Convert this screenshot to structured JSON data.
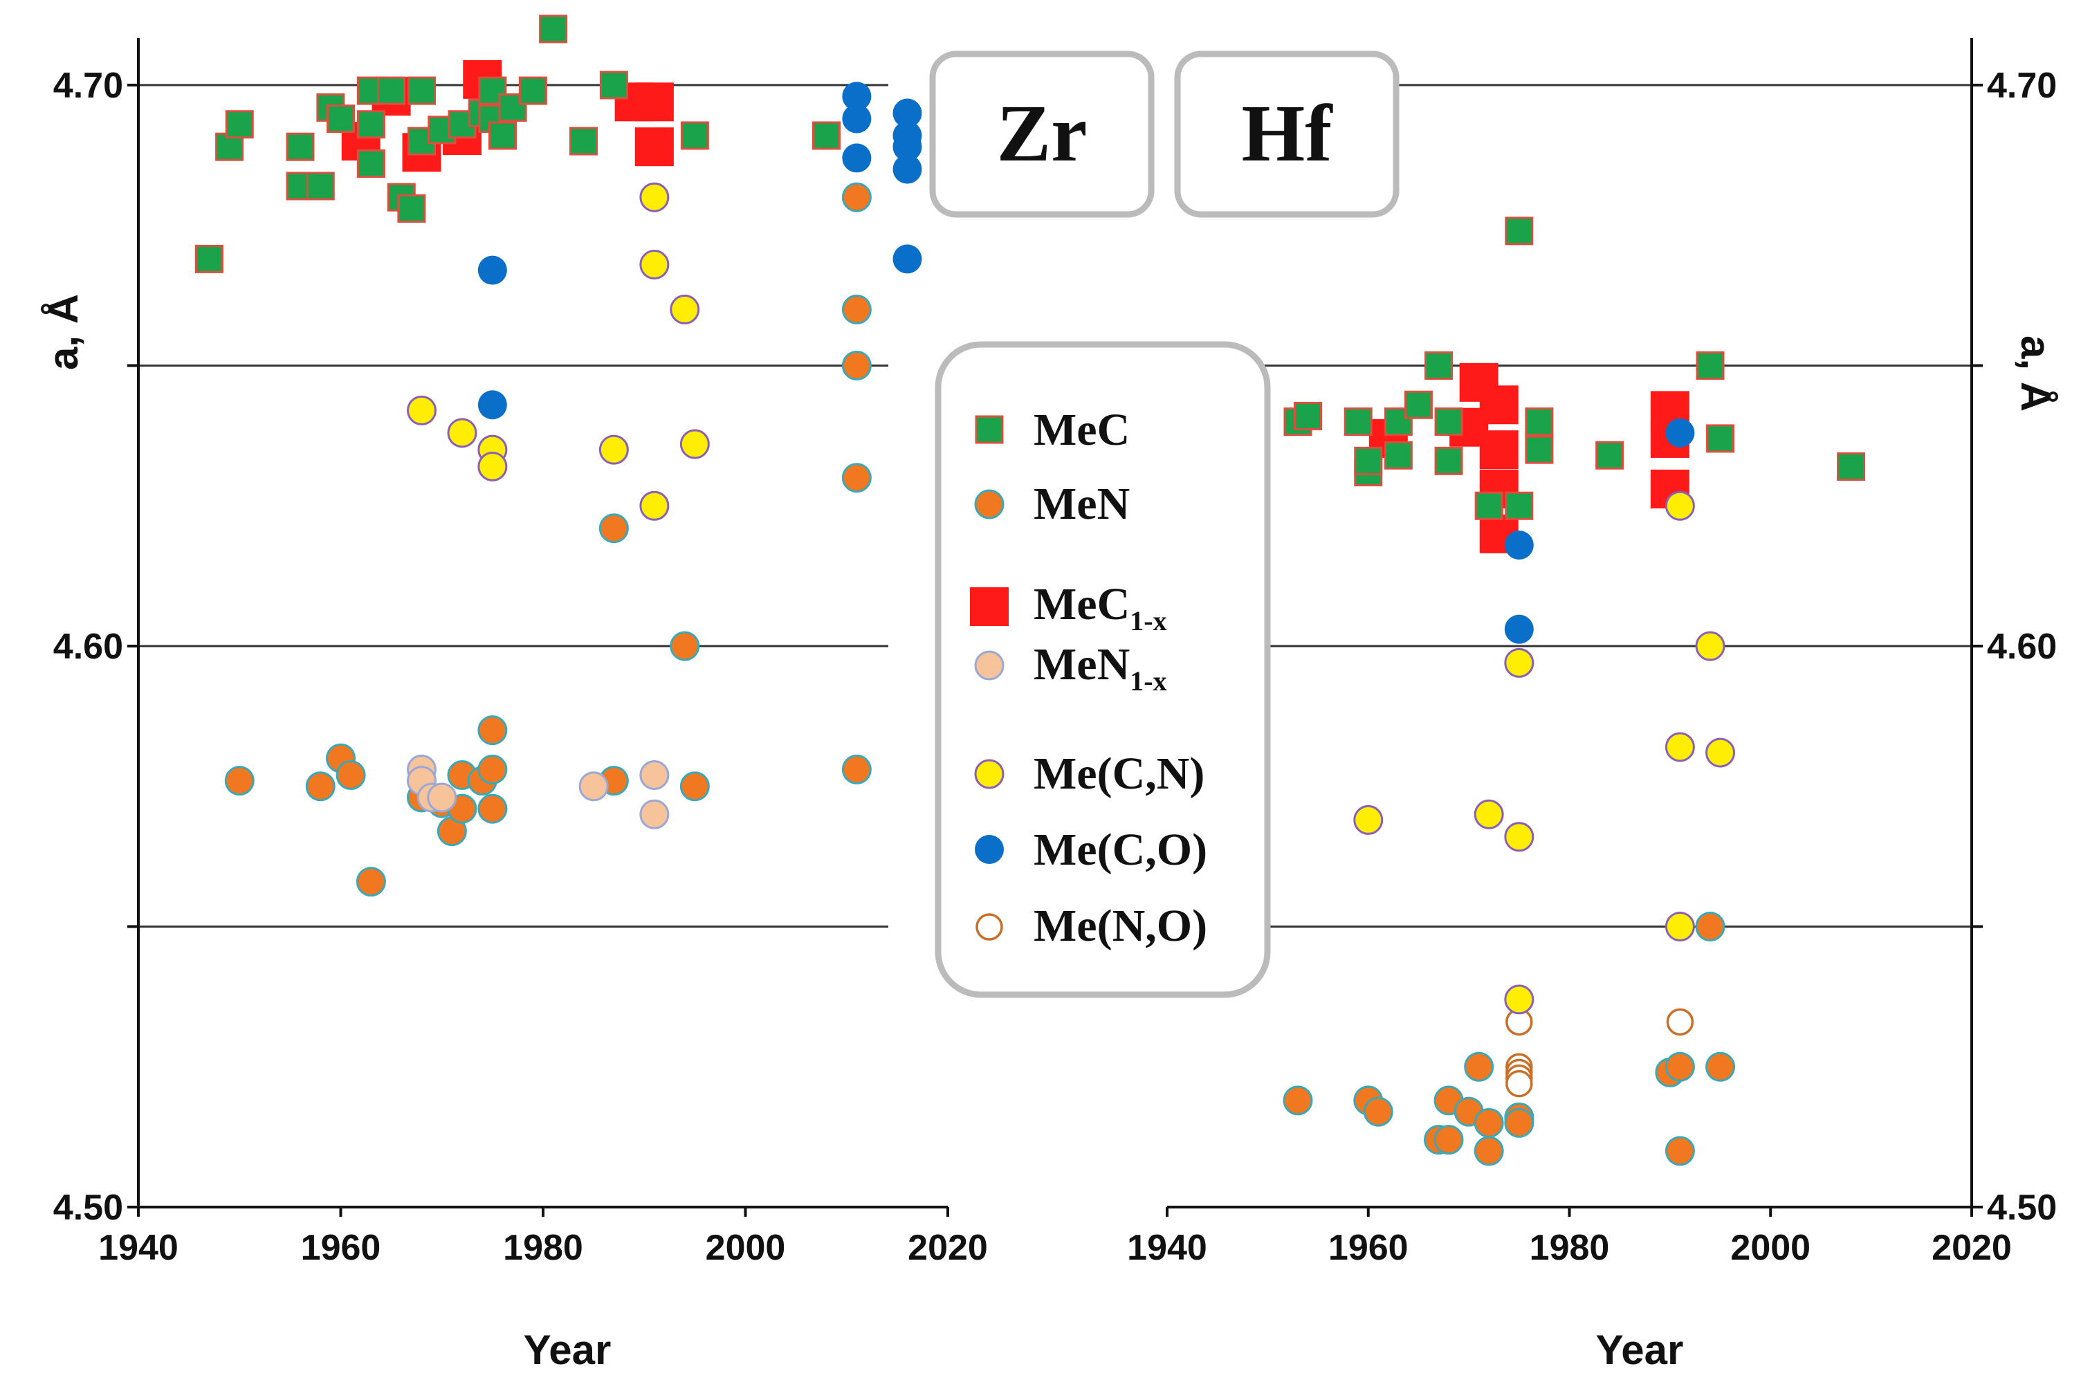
{
  "chart_data": [
    {
      "type": "scatter",
      "panel": "Zr",
      "xlabel": "Year",
      "ylabel": "a, Å",
      "xlim": [
        1940,
        2020
      ],
      "ylim": [
        4.5,
        4.7
      ],
      "xticks": [
        "1940",
        "1960",
        "1980",
        "2000",
        "2020"
      ],
      "yticks": [
        "4.50",
        "4.60",
        "4.70"
      ],
      "gridlines_y": [
        4.55,
        4.6,
        4.65,
        4.7
      ],
      "series": [
        {
          "name": "MeC",
          "points": [
            [
              1947,
              4.669
            ],
            [
              1949,
              4.689
            ],
            [
              1950,
              4.693
            ],
            [
              1956,
              4.689
            ],
            [
              1956,
              4.682
            ],
            [
              1958,
              4.682
            ],
            [
              1959,
              4.696
            ],
            [
              1960,
              4.694
            ],
            [
              1963,
              4.686
            ],
            [
              1963,
              4.693
            ],
            [
              1963,
              4.699
            ],
            [
              1965,
              4.699
            ],
            [
              1966,
              4.68
            ],
            [
              1967,
              4.678
            ],
            [
              1968,
              4.699
            ],
            [
              1968,
              4.69
            ],
            [
              1970,
              4.692
            ],
            [
              1972,
              4.693
            ],
            [
              1974,
              4.695
            ],
            [
              1975,
              4.699
            ],
            [
              1975,
              4.694
            ],
            [
              1976,
              4.691
            ],
            [
              1977,
              4.696
            ],
            [
              1979,
              4.699
            ],
            [
              1981,
              4.71
            ],
            [
              1984,
              4.69
            ],
            [
              1987,
              4.7
            ],
            [
              1995,
              4.691
            ],
            [
              2008,
              4.691
            ]
          ]
        },
        {
          "name": "MeC1-x",
          "points": [
            [
              1962,
              4.69
            ],
            [
              1965,
              4.698
            ],
            [
              1968,
              4.688
            ],
            [
              1972,
              4.691
            ],
            [
              1974,
              4.701
            ],
            [
              1989,
              4.697
            ],
            [
              1991,
              4.697
            ],
            [
              1991,
              4.689
            ]
          ]
        },
        {
          "name": "MeN",
          "points": [
            [
              1950,
              4.576
            ],
            [
              1958,
              4.575
            ],
            [
              1960,
              4.58
            ],
            [
              1961,
              4.577
            ],
            [
              1963,
              4.558
            ],
            [
              1968,
              4.573
            ],
            [
              1970,
              4.572
            ],
            [
              1971,
              4.567
            ],
            [
              1972,
              4.577
            ],
            [
              1972,
              4.571
            ],
            [
              1974,
              4.576
            ],
            [
              1975,
              4.585
            ],
            [
              1975,
              4.578
            ],
            [
              1975,
              4.571
            ],
            [
              1987,
              4.576
            ],
            [
              1987,
              4.621
            ],
            [
              1994,
              4.6
            ],
            [
              1995,
              4.575
            ],
            [
              2011,
              4.68
            ],
            [
              2011,
              4.66
            ],
            [
              2011,
              4.65
            ],
            [
              2011,
              4.63
            ],
            [
              2011,
              4.578
            ]
          ]
        },
        {
          "name": "MeN1-x",
          "points": [
            [
              1968,
              4.578
            ],
            [
              1968,
              4.576
            ],
            [
              1969,
              4.573
            ],
            [
              1970,
              4.573
            ],
            [
              1985,
              4.575
            ],
            [
              1991,
              4.577
            ],
            [
              1991,
              4.57
            ]
          ]
        },
        {
          "name": "Me(C,N)",
          "points": [
            [
              1968,
              4.642
            ],
            [
              1972,
              4.638
            ],
            [
              1975,
              4.635
            ],
            [
              1975,
              4.632
            ],
            [
              1987,
              4.635
            ],
            [
              1991,
              4.68
            ],
            [
              1991,
              4.668
            ],
            [
              1991,
              4.625
            ],
            [
              1994,
              4.66
            ],
            [
              1995,
              4.636
            ]
          ]
        },
        {
          "name": "Me(C,O)",
          "points": [
            [
              1975,
              4.667
            ],
            [
              1975,
              4.643
            ],
            [
              2011,
              4.698
            ],
            [
              2011,
              4.694
            ],
            [
              2011,
              4.687
            ],
            [
              2016,
              4.695
            ],
            [
              2016,
              4.691
            ],
            [
              2016,
              4.689
            ],
            [
              2016,
              4.685
            ],
            [
              2016,
              4.669
            ]
          ]
        },
        {
          "name": "Me(N,O)",
          "points": []
        }
      ]
    },
    {
      "type": "scatter",
      "panel": "Hf",
      "xlabel": "Year",
      "ylabel": "a, Å",
      "xlim": [
        1940,
        2020
      ],
      "ylim": [
        4.5,
        4.7
      ],
      "xticks": [
        "1940",
        "1960",
        "1980",
        "2000",
        "2020"
      ],
      "yticks": [
        "4.50",
        "4.60",
        "4.70"
      ],
      "gridlines_y": [
        4.55,
        4.6,
        4.65,
        4.7
      ],
      "series": [
        {
          "name": "MeC",
          "points": [
            [
              1953,
              4.64
            ],
            [
              1954,
              4.641
            ],
            [
              1959,
              4.64
            ],
            [
              1960,
              4.631
            ],
            [
              1960,
              4.633
            ],
            [
              1963,
              4.64
            ],
            [
              1963,
              4.634
            ],
            [
              1965,
              4.643
            ],
            [
              1967,
              4.65
            ],
            [
              1968,
              4.64
            ],
            [
              1968,
              4.633
            ],
            [
              1972,
              4.625
            ],
            [
              1975,
              4.674
            ],
            [
              1975,
              4.625
            ],
            [
              1977,
              4.64
            ],
            [
              1977,
              4.635
            ],
            [
              1984,
              4.634
            ],
            [
              1994,
              4.65
            ],
            [
              1995,
              4.637
            ],
            [
              2008,
              4.632
            ]
          ]
        },
        {
          "name": "MeC1-x",
          "points": [
            [
              1962,
              4.637
            ],
            [
              1970,
              4.639
            ],
            [
              1971,
              4.647
            ],
            [
              1973,
              4.643
            ],
            [
              1973,
              4.635
            ],
            [
              1973,
              4.628
            ],
            [
              1973,
              4.62
            ],
            [
              1990,
              4.642
            ],
            [
              1990,
              4.637
            ],
            [
              1990,
              4.628
            ]
          ]
        },
        {
          "name": "MeN",
          "points": [
            [
              1953,
              4.519
            ],
            [
              1960,
              4.519
            ],
            [
              1961,
              4.517
            ],
            [
              1967,
              4.512
            ],
            [
              1968,
              4.519
            ],
            [
              1968,
              4.512
            ],
            [
              1970,
              4.517
            ],
            [
              1971,
              4.525
            ],
            [
              1972,
              4.515
            ],
            [
              1972,
              4.51
            ],
            [
              1975,
              4.516
            ],
            [
              1975,
              4.515
            ],
            [
              1990,
              4.524
            ],
            [
              1991,
              4.525
            ],
            [
              1991,
              4.51
            ],
            [
              1994,
              4.55
            ],
            [
              1995,
              4.525
            ]
          ]
        },
        {
          "name": "MeN1-x",
          "points": []
        },
        {
          "name": "Me(C,N)",
          "points": [
            [
              1960,
              4.569
            ],
            [
              1972,
              4.57
            ],
            [
              1975,
              4.566
            ],
            [
              1975,
              4.597
            ],
            [
              1975,
              4.537
            ],
            [
              1991,
              4.625
            ],
            [
              1991,
              4.582
            ],
            [
              1991,
              4.55
            ],
            [
              1994,
              4.6
            ],
            [
              1995,
              4.581
            ]
          ]
        },
        {
          "name": "Me(C,O)",
          "points": [
            [
              1975,
              4.618
            ],
            [
              1975,
              4.603
            ],
            [
              1991,
              4.638
            ]
          ]
        },
        {
          "name": "Me(N,O)",
          "points": [
            [
              1975,
              4.533
            ],
            [
              1975,
              4.525
            ],
            [
              1975,
              4.524
            ],
            [
              1975,
              4.523
            ],
            [
              1975,
              4.522
            ],
            [
              1991,
              4.533
            ]
          ]
        }
      ]
    }
  ],
  "panels": {
    "left_label": "Zr",
    "right_label": "Hf"
  },
  "legend": {
    "items": [
      {
        "key": "MeC",
        "base": "MeC",
        "sub": ""
      },
      {
        "key": "MeN",
        "base": "MeN",
        "sub": ""
      },
      {
        "key": "MeC1-x",
        "base": "MeC",
        "sub": "1-x"
      },
      {
        "key": "MeN1-x",
        "base": "MeN",
        "sub": "1-x"
      },
      {
        "key": "Me(C,N)",
        "base": "Me(C,N)",
        "sub": ""
      },
      {
        "key": "Me(C,O)",
        "base": "Me(C,O)",
        "sub": ""
      },
      {
        "key": "Me(N,O)",
        "base": "Me(N,O)",
        "sub": ""
      }
    ]
  },
  "colors": {
    "MeC_fill": "#1aa34a",
    "MeC_stroke": "#d9503f",
    "MeC1x_fill": "#ff1a1a",
    "MeN_fill": "#f07820",
    "MeN_stroke": "#3aa8b8",
    "MeN1x_fill": "#f7c39a",
    "MeN1x_stroke": "#9aa8d8",
    "MeCN_fill": "#ffee00",
    "MeCN_stroke": "#8a5fb8",
    "MeCO_fill": "#0a6fc8",
    "MeNO_stroke": "#c8702a",
    "grid": "#333333",
    "box_stroke": "#bbbbbb"
  }
}
